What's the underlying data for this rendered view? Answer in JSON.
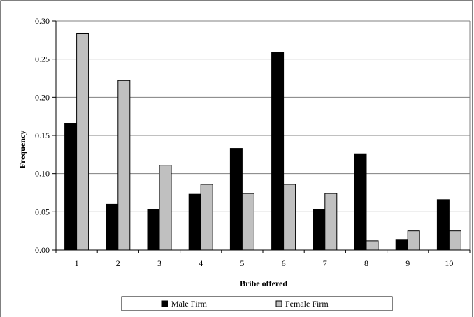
{
  "chart_data": {
    "type": "bar",
    "title": "",
    "xlabel": "Bribe offered",
    "ylabel": "Frequency",
    "ylim": [
      0,
      0.3
    ],
    "yticks": [
      "0.00",
      "0.05",
      "0.10",
      "0.15",
      "0.20",
      "0.25",
      "0.30"
    ],
    "grid": true,
    "legend_position": "bottom",
    "categories": [
      "1",
      "2",
      "3",
      "4",
      "5",
      "6",
      "7",
      "8",
      "9",
      "10"
    ],
    "series": [
      {
        "name": "Male Firm",
        "color": "#000000",
        "values": [
          0.166,
          0.06,
          0.053,
          0.073,
          0.133,
          0.259,
          0.053,
          0.126,
          0.013,
          0.066
        ]
      },
      {
        "name": "Female Firm",
        "color": "#c0c0c0",
        "values": [
          0.284,
          0.222,
          0.111,
          0.086,
          0.074,
          0.086,
          0.074,
          0.012,
          0.025,
          0.025
        ]
      }
    ]
  }
}
